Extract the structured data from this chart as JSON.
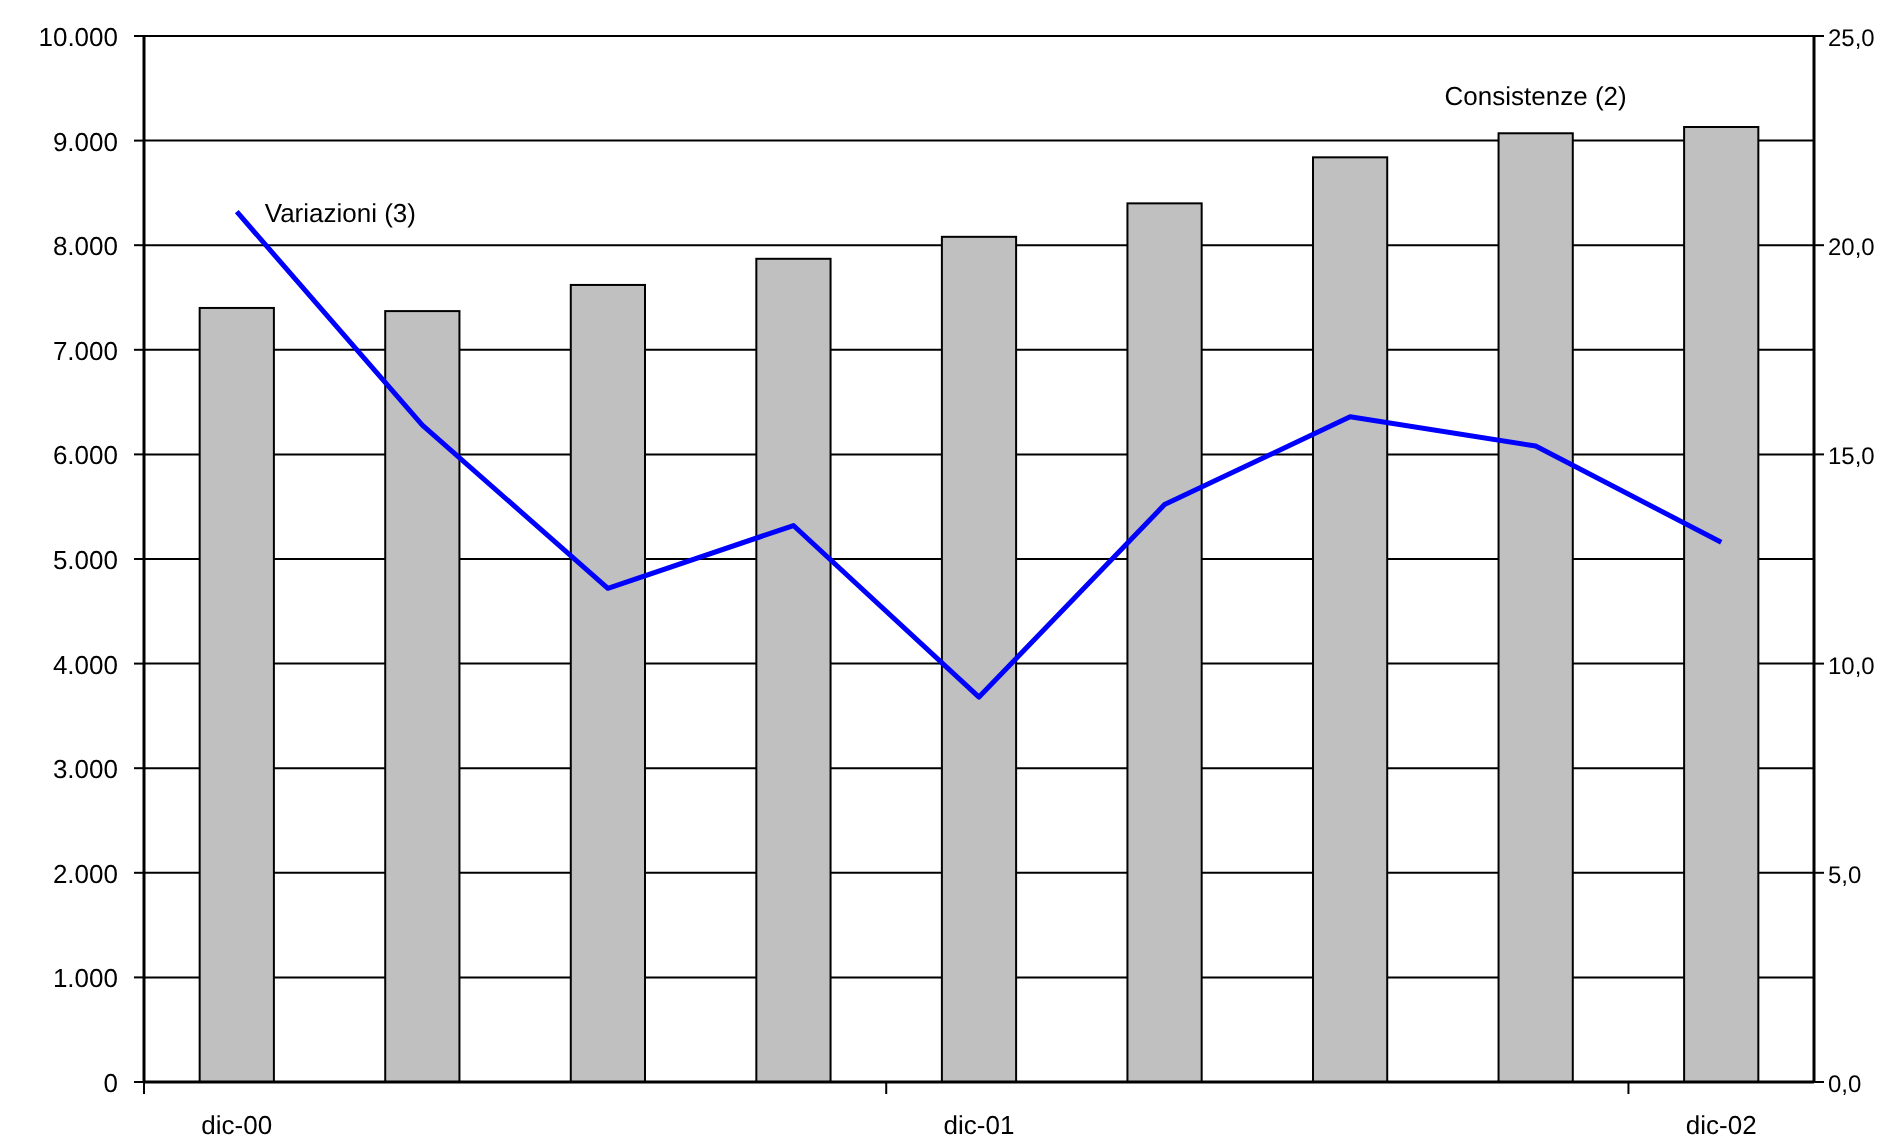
{
  "chart_data": {
    "type": "bar",
    "categories": [
      "dic-00",
      null,
      null,
      null,
      "dic-01",
      null,
      null,
      null,
      "dic-02"
    ],
    "series": [
      {
        "name": "Consistenze (2)",
        "color": "#c0c0c0",
        "values": [
          7400,
          7370,
          7620,
          7870,
          8080,
          8400,
          8840,
          9070,
          9130
        ]
      },
      {
        "name": "Variazioni (3)",
        "type": "line",
        "axis": "y2",
        "color": "#0000ff",
        "values": [
          20.8,
          15.7,
          11.8,
          13.3,
          9.2,
          13.8,
          15.9,
          15.2,
          12.9
        ]
      }
    ],
    "ylim": [
      0,
      10000
    ],
    "yticks": [
      0,
      {
        "value": 1000,
        "label": "1.000"
      },
      {
        "value": 2000,
        "label": "2.000"
      },
      {
        "value": 3000,
        "label": "3.000"
      },
      {
        "value": 4000,
        "label": "4.000"
      },
      {
        "value": 5000,
        "label": "5.000"
      },
      {
        "value": 6000,
        "label": "6.000"
      },
      {
        "value": 7000,
        "label": "7.000"
      },
      {
        "value": 8000,
        "label": "8.000"
      },
      {
        "value": 9000,
        "label": "9.000"
      },
      {
        "value": 10000,
        "label": "10.000"
      }
    ],
    "y2lim": [
      0,
      25
    ],
    "y2ticks": [
      {
        "value": 0,
        "label": "0,0"
      },
      {
        "value": 5,
        "label": "5,0"
      },
      {
        "value": 10,
        "label": "10,0"
      },
      {
        "value": 15,
        "label": "15,0"
      },
      {
        "value": 20,
        "label": "20,0"
      },
      {
        "value": 25,
        "label": "25,0"
      }
    ],
    "grid": "y",
    "marker": "none",
    "line_style": "solid"
  }
}
